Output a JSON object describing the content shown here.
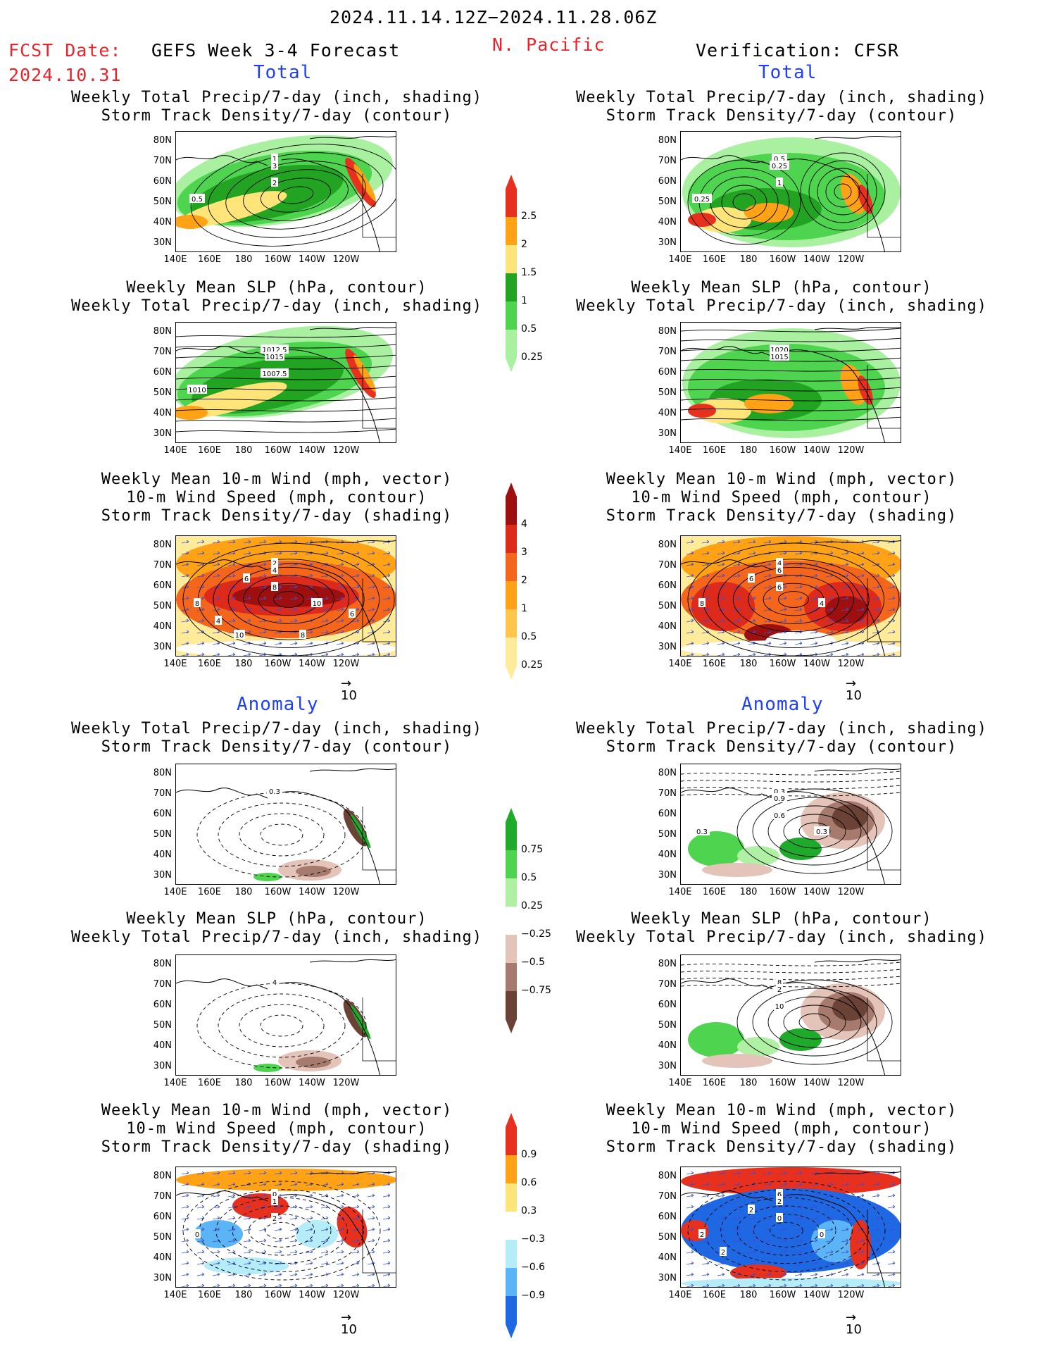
{
  "header": {
    "period": "2024.11.14.12Z−2024.11.28.06Z",
    "fcst_label": "FCST Date:",
    "fcst_date": "2024.10.31",
    "forecast_title": "GEFS Week 3-4 Forecast",
    "region": "N. Pacific",
    "verification": "Verification: CFSR"
  },
  "sections": {
    "total_left": "Total",
    "total_right": "Total",
    "anomaly_left": "Anomaly",
    "anomaly_right": "Anomaly"
  },
  "titles": {
    "precip_storm": [
      "Weekly Total Precip/7-day (inch, shading)",
      "Storm Track Density/7-day (contour)"
    ],
    "slp_precip": [
      "Weekly Mean SLP (hPa, contour)",
      "Weekly Total Precip/7-day (inch, shading)"
    ],
    "wind_storm": [
      "Weekly Mean 10-m Wind (mph, vector)",
      "10-m Wind Speed (mph, contour)",
      "Storm Track Density/7-day (shading)"
    ]
  },
  "axes": {
    "lat": [
      "80N",
      "70N",
      "60N",
      "50N",
      "40N",
      "30N"
    ],
    "lon": [
      "140E",
      "160E",
      "180",
      "160W",
      "140W",
      "120W"
    ]
  },
  "vector_ref": "10",
  "colorbars": {
    "precip_total": {
      "ticks": [
        "2.5",
        "2",
        "1.5",
        "1",
        "0.5",
        "0.25"
      ],
      "colors": [
        "#e8301e",
        "#ffa215",
        "#ffe47a",
        "#22a322",
        "#4ed44e",
        "#a9f0a0"
      ]
    },
    "storm_total": {
      "ticks": [
        "4",
        "3",
        "2",
        "1",
        "0.5",
        "0.25"
      ],
      "colors": [
        "#9e1010",
        "#dd2a1a",
        "#f4661c",
        "#ffa215",
        "#ffc64b",
        "#ffeb99"
      ]
    },
    "precip_anom": {
      "ticks": [
        "0.75",
        "0.5",
        "0.25",
        "−0.25",
        "−0.5",
        "−0.75"
      ],
      "colors": [
        "#1faa2c",
        "#4fd44f",
        "#b0f0a4",
        "#ffffff",
        "#e4c3b8",
        "#a67a6c",
        "#6b4236"
      ]
    },
    "storm_anom": {
      "ticks": [
        "0.9",
        "0.6",
        "0.3",
        "−0.3",
        "−0.6",
        "−0.9"
      ],
      "colors": [
        "#e8301e",
        "#ffa215",
        "#ffe47a",
        "#ffffff",
        "#b4ecf8",
        "#5ab4f5",
        "#1f68e3"
      ]
    }
  },
  "contour_labels": {
    "l1": [
      "1",
      "3",
      "2",
      "0.5"
    ],
    "r1": [
      "0.5",
      "0.25",
      "1",
      "0.25"
    ],
    "l2": [
      "1012.5",
      "1015",
      "1007.5",
      "1010"
    ],
    "r2": [
      "1020",
      "1015"
    ],
    "l3": [
      "2",
      "4",
      "8",
      "8",
      "10",
      "6",
      "4",
      "6",
      "8",
      "10"
    ],
    "r3": [
      "4",
      "6",
      "6",
      "8",
      "4",
      "6"
    ],
    "l4": [
      "0.3"
    ],
    "r4": [
      "0.3",
      "0.9",
      "0.6",
      "0.3",
      "0.3"
    ],
    "l5": [
      "4"
    ],
    "r5": [
      "8",
      "2",
      "10"
    ],
    "l6": [
      "0",
      "1",
      "2",
      "0"
    ],
    "r6": [
      "6",
      "2",
      "0",
      "2",
      "0",
      "2",
      "2"
    ]
  }
}
